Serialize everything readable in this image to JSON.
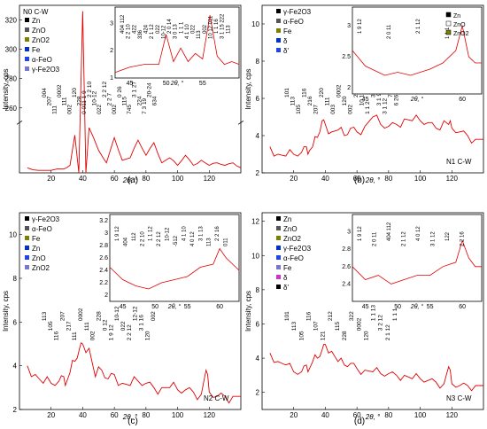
{
  "chart_data": [
    {
      "type": "line",
      "panel": "(a)",
      "label": "N0 C-W",
      "xlabel": "2θ, °",
      "ylabel": "Intensity, cps",
      "xlim": [
        0,
        140
      ],
      "xticks": [
        20,
        40,
        60,
        80,
        100,
        120
      ],
      "ylim_lower": [
        0,
        20
      ],
      "ylim_upper": [
        250,
        330
      ],
      "yticks_upper": [
        260,
        280,
        300,
        320
      ],
      "series": [
        {
          "color": "#e00000",
          "x": [
            5,
            12,
            20,
            28,
            32,
            35,
            40,
            44,
            50,
            55,
            60,
            65,
            70,
            75,
            80,
            85,
            90,
            95,
            100,
            105,
            110,
            115,
            120,
            125,
            130,
            135,
            140
          ],
          "y": [
            2,
            1,
            1,
            1.5,
            3,
            15,
            326,
            18,
            9,
            4,
            14,
            5,
            6,
            13,
            7,
            12,
            4,
            6,
            3,
            7,
            3,
            5,
            3,
            4,
            3,
            4,
            2
          ]
        }
      ],
      "legend": [
        "Zn",
        "ZnO",
        "ZnO2",
        "Fe",
        "α-FeO",
        "γ-Fe2O3"
      ],
      "inset": {
        "xlabel": "2θ, °",
        "xlim": [
          43,
          60
        ],
        "ylim": [
          1.0,
          3.6
        ],
        "xticks": [
          45,
          50,
          55
        ],
        "yticks": [
          1,
          2,
          3
        ],
        "annotations": [
          "404 112",
          "2 2 10",
          "422",
          "336",
          "424",
          "2 1 12",
          "022",
          "10-12",
          "2 0 14",
          "3 0 13",
          "1 1 1",
          "4 1 10",
          "022",
          "113",
          "002",
          "10 12 011",
          "1 1 16",
          "3 1 15 222",
          "113"
        ],
        "series": [
          {
            "x": [
              43,
              45,
              47,
              49,
              50,
              51,
              52,
              53,
              54,
              55,
              56,
              57,
              58,
              59,
              60
            ],
            "y": [
              1.2,
              1.4,
              1.5,
              1.5,
              2.6,
              1.6,
              2.1,
              1.6,
              1.9,
              1.7,
              3.3,
              1.8,
              1.5,
              1.6,
              1.5
            ]
          }
        ]
      },
      "annotations": [
        "004",
        "207",
        "111",
        "0002",
        "111",
        "002",
        "120",
        "228",
        "0 011 1 9",
        "2 2 10",
        "10-12",
        "022",
        "2 2 12",
        "2 2 7",
        "002",
        "0 26",
        "115",
        "745",
        "3 1 27",
        "224",
        "7 3 19",
        "20-24",
        "634"
      ]
    },
    {
      "type": "line",
      "panel": "(b)",
      "label": "N1 C-W",
      "xlabel": "2θ, °",
      "ylabel": "Intensity, cps",
      "xlim": [
        0,
        140
      ],
      "ylim": [
        2,
        11
      ],
      "xticks": [
        20,
        40,
        60,
        80,
        100,
        120
      ],
      "yticks": [
        2,
        4,
        6,
        8,
        10
      ],
      "series": [
        {
          "color": "#e00000",
          "x": [
            5,
            10,
            15,
            20,
            25,
            28,
            30,
            32,
            35,
            38,
            40,
            44,
            48,
            52,
            56,
            60,
            65,
            70,
            75,
            80,
            85,
            90,
            95,
            100,
            105,
            110,
            115,
            118,
            120,
            125,
            130,
            135,
            140
          ],
          "y": [
            3.4,
            3.0,
            2.9,
            3.0,
            3.1,
            3.4,
            3.2,
            3.4,
            3.9,
            4.8,
            4.6,
            4.2,
            4.3,
            4.0,
            4.4,
            4.2,
            4.5,
            5.0,
            4.6,
            4.5,
            4.6,
            4.9,
            4.8,
            4.8,
            4.7,
            4.4,
            4.8,
            4.6,
            4.4,
            4.2,
            4.0,
            3.8,
            3.8
          ]
        }
      ],
      "legend": [
        "γ-Fe2O3",
        "α-FeO",
        "Fe",
        "δ",
        "δ'"
      ],
      "inset": {
        "xlabel": "2θ, °",
        "xlim": [
          43,
          63
        ],
        "ylim": [
          1.9,
          3.3
        ],
        "xticks": [
          45,
          60
        ],
        "yticks": [
          2.0,
          2.5,
          3.0
        ],
        "legend": [
          "Zn",
          "ZnO",
          "ZnO2"
        ],
        "annotations": [
          "1 9 12",
          "2 0 11",
          "2 1 12",
          "1 1 1"
        ],
        "series": [
          {
            "x": [
              43,
              45,
              48,
              50,
              52,
              55,
              57,
              59,
              60,
              61,
              62,
              63
            ],
            "y": [
              2.6,
              2.35,
              2.2,
              2.25,
              2.2,
              2.3,
              2.4,
              2.6,
              3.0,
              2.5,
              2.4,
              2.4
            ]
          }
        ]
      },
      "annotations": [
        "101",
        "113",
        "105",
        "116",
        "216",
        "207",
        "220",
        "111",
        "003",
        "0002",
        "120",
        "002",
        "228",
        "10 12",
        "1 1 2",
        "322",
        "3 1 9",
        "3 1 12",
        "7 3 19",
        "6 26"
      ]
    },
    {
      "type": "line",
      "panel": "(c)",
      "label": "N2 C-W",
      "xlabel": "2θ, °",
      "ylabel": "Intensity, cps",
      "xlim": [
        0,
        140
      ],
      "ylim": [
        2,
        11
      ],
      "xticks": [
        20,
        40,
        60,
        80,
        100,
        120
      ],
      "yticks": [
        2,
        4,
        6,
        8,
        10
      ],
      "series": [
        {
          "color": "#e00000",
          "x": [
            5,
            10,
            15,
            20,
            25,
            28,
            30,
            32,
            35,
            38,
            40,
            44,
            48,
            52,
            56,
            60,
            65,
            70,
            75,
            80,
            85,
            90,
            95,
            100,
            105,
            110,
            115,
            118,
            120,
            125,
            130,
            135,
            140
          ],
          "y": [
            4.0,
            3.6,
            3.2,
            3.2,
            3.3,
            3.5,
            3.3,
            3.7,
            4.2,
            4.8,
            5.0,
            4.8,
            3.5,
            3.8,
            3.4,
            3.6,
            3.2,
            3.1,
            3.3,
            3.2,
            3.0,
            3.0,
            3.0,
            2.9,
            2.9,
            2.8,
            2.7,
            3.8,
            2.8,
            2.6,
            2.6,
            2.6,
            2.6
          ]
        }
      ],
      "legend": [
        "γ-Fe2O3",
        "α-FeO",
        "Fe",
        "Zn",
        "ZnO",
        "ZnO2"
      ],
      "inset": {
        "xlabel": "2θ, °",
        "xlim": [
          43,
          63
        ],
        "ylim": [
          1.9,
          3.3
        ],
        "xticks": [
          45,
          50,
          55,
          60
        ],
        "yticks": [
          2.0,
          2.2,
          2.4,
          2.6,
          2.8,
          3.0,
          3.2
        ],
        "annotations": [
          "1 9 12",
          "404",
          "112",
          "2 2 10",
          "1 1 12",
          "2 2 12",
          "10-12",
          "-512",
          "4 1 10",
          "4 0 12",
          "3 1 13",
          "113",
          "2 2 16",
          "011"
        ],
        "series": [
          {
            "x": [
              43,
              45,
              47,
              49,
              51,
              53,
              55,
              57,
              59,
              60,
              61,
              62,
              63
            ],
            "y": [
              2.45,
              2.25,
              2.15,
              2.1,
              2.2,
              2.25,
              2.3,
              2.45,
              2.5,
              2.75,
              2.6,
              2.5,
              2.4
            ]
          }
        ]
      },
      "annotations": [
        "113",
        "105",
        "116",
        "207",
        "217",
        "111",
        "0002",
        "111",
        "002",
        "228",
        "0 12",
        "1 9 12",
        "10-12",
        "022",
        "2 2 12",
        "12-12",
        "3 1 16",
        "120",
        "002"
      ]
    },
    {
      "type": "line",
      "panel": "(d)",
      "label": "N3 C-W",
      "xlabel": "2θ, °",
      "ylabel": "Intensity, cps",
      "xlim": [
        0,
        140
      ],
      "ylim": [
        1,
        12.5
      ],
      "xticks": [
        20,
        40,
        60,
        80,
        100,
        120
      ],
      "yticks": [
        2,
        4,
        6,
        8,
        10,
        12
      ],
      "series": [
        {
          "color": "#e00000",
          "x": [
            5,
            10,
            15,
            20,
            25,
            28,
            30,
            32,
            35,
            38,
            40,
            44,
            48,
            52,
            56,
            60,
            65,
            70,
            75,
            80,
            85,
            90,
            95,
            100,
            105,
            110,
            115,
            118,
            120,
            125,
            130,
            135,
            140
          ],
          "y": [
            4.3,
            3.8,
            3.6,
            3.2,
            3.2,
            3.6,
            3.4,
            3.8,
            4.0,
            4.5,
            4.8,
            4.4,
            3.8,
            3.6,
            3.7,
            3.4,
            3.3,
            3.2,
            3.1,
            3.1,
            3.0,
            3.0,
            2.8,
            2.8,
            2.7,
            2.6,
            2.5,
            3.5,
            2.5,
            2.4,
            2.4,
            2.4,
            2.4
          ]
        }
      ],
      "legend": [
        "Zn",
        "ZnO",
        "ZnO2",
        "γ-Fe2O3",
        "α-FeO",
        "Fe",
        "δ",
        "δ'"
      ],
      "inset": {
        "xlabel": "2θ, °",
        "xlim": [
          43,
          63
        ],
        "ylim": [
          2.2,
          3.2
        ],
        "xticks": [
          45,
          50,
          55,
          60
        ],
        "yticks": [
          2.4,
          2.6,
          2.8,
          3.0
        ],
        "annotations": [
          "1 9 12",
          "2 0 11",
          "404 112",
          "2 1 12",
          "4 0 12",
          "3 1 12",
          "122",
          "2 2 16"
        ],
        "series": [
          {
            "x": [
              43,
              45,
              47,
              49,
              51,
              53,
              55,
              57,
              59,
              60,
              61,
              62,
              63
            ],
            "y": [
              2.6,
              2.45,
              2.5,
              2.4,
              2.45,
              2.5,
              2.5,
              2.6,
              2.65,
              2.9,
              2.7,
              2.6,
              2.6
            ]
          }
        ]
      },
      "annotations": [
        "101",
        "113",
        "105",
        "116",
        "107",
        "121",
        "212",
        "115",
        "228",
        "322",
        "0002",
        "120",
        "1 1 13",
        "3 2 12",
        "2 1 12",
        "1 1 1"
      ]
    }
  ]
}
